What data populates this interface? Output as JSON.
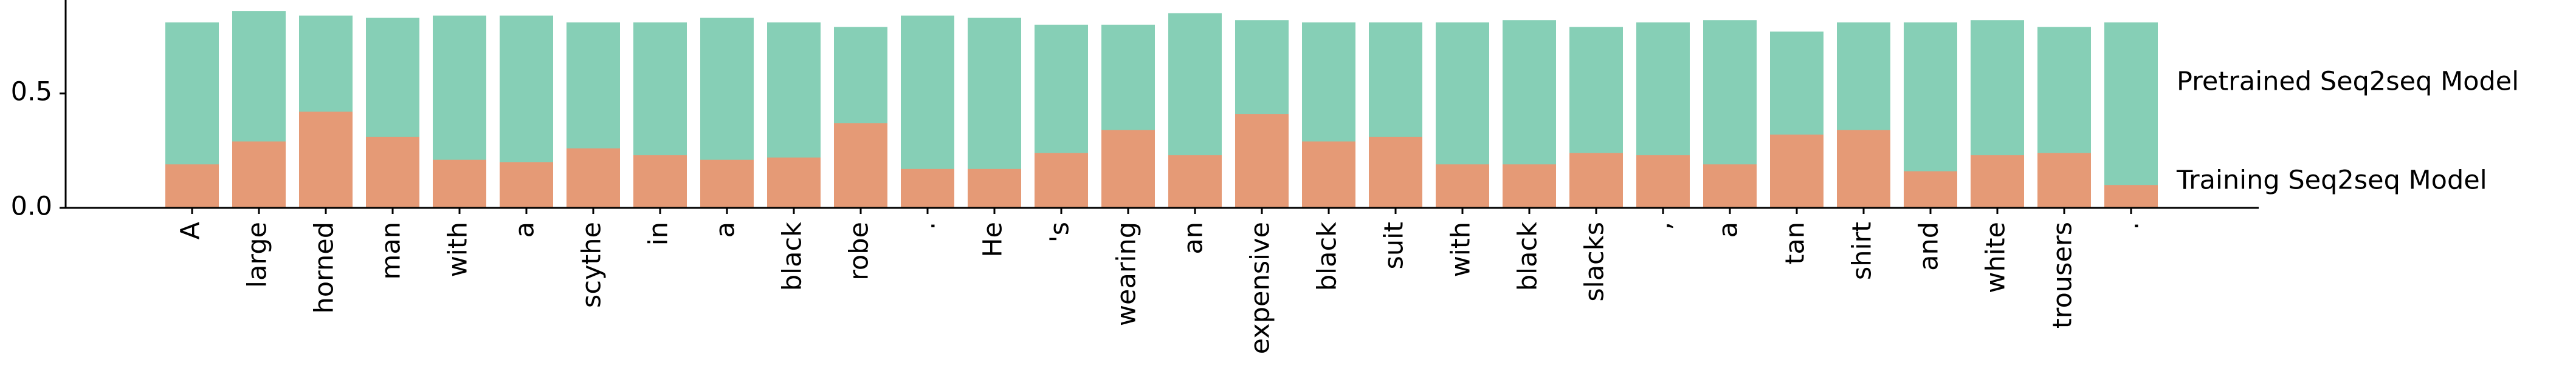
{
  "chart_data": {
    "type": "bar",
    "categories": [
      "A",
      "large",
      "horned",
      "man",
      "with",
      "a",
      "scythe",
      "in",
      "a",
      "black",
      "robe",
      ".",
      "He",
      "'s",
      "wearing",
      "an",
      "expensive",
      "black",
      "suit",
      "with",
      "black",
      "slacks",
      ",",
      "a",
      "tan",
      "shirt",
      "and",
      "white",
      "trousers",
      "."
    ],
    "series": [
      {
        "name": "Pretrained Seq2seq Model",
        "color": "#86cfb6",
        "values": [
          0.81,
          0.86,
          0.84,
          0.83,
          0.84,
          0.84,
          0.81,
          0.81,
          0.83,
          0.81,
          0.79,
          0.84,
          0.83,
          0.8,
          0.8,
          0.85,
          0.82,
          0.81,
          0.81,
          0.81,
          0.82,
          0.79,
          0.81,
          0.82,
          0.77,
          0.81,
          0.81,
          0.82,
          0.79,
          0.81
        ]
      },
      {
        "name": "Training Seq2seq Model",
        "color": "#e59a76",
        "values": [
          0.19,
          0.29,
          0.42,
          0.31,
          0.21,
          0.2,
          0.26,
          0.23,
          0.21,
          0.22,
          0.37,
          0.17,
          0.17,
          0.24,
          0.34,
          0.23,
          0.41,
          0.29,
          0.31,
          0.19,
          0.19,
          0.24,
          0.23,
          0.19,
          0.32,
          0.34,
          0.16,
          0.23,
          0.24,
          0.1
        ]
      }
    ],
    "ylim": [
      0,
      0.9
    ],
    "yticks": [
      {
        "value": 0,
        "label": "0.0"
      },
      {
        "value": 0.5,
        "label": "0.5"
      }
    ]
  }
}
